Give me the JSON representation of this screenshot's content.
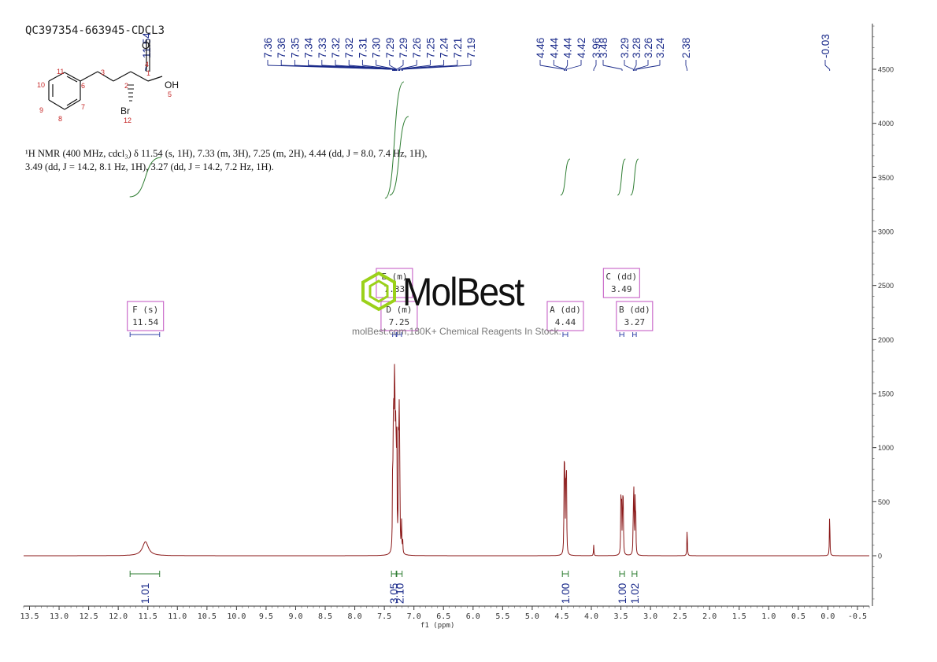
{
  "sample_id": "QC397354-663945-CDCL3",
  "description": {
    "line1": "¹H NMR (400 MHz, cdcl₃) δ 11.54 (s, 1H), 7.33 (m, 3H), 7.25 (m, 2H), 4.44 (dd, J = 8.0, 7.4 Hz, 1H),",
    "line2": "3.49 (dd, J = 14.2, 8.1 Hz, 1H), 3.27 (dd, J = 14.2, 7.2 Hz, 1H)."
  },
  "watermark": {
    "name": "MolBest",
    "tagline": "molBest.com,180K+ Chemical Reagents In Stock."
  },
  "molecule": {
    "atoms": [
      "1",
      "2",
      "3",
      "4",
      "5",
      "6",
      "7",
      "8",
      "9",
      "10",
      "11",
      "12"
    ],
    "labels": {
      "oh": "OH",
      "o": "O",
      "br": "Br"
    }
  },
  "chart_data": {
    "type": "line",
    "xlabel": "f1 (ppm)",
    "ylabel": "",
    "xlim": [
      13.6,
      -0.7
    ],
    "ylim": [
      -500,
      4900
    ],
    "x_ticks": [
      "13.5",
      "13.0",
      "12.5",
      "12.0",
      "11.5",
      "11.0",
      "10.5",
      "10.0",
      "9.5",
      "9.0",
      "8.5",
      "8.0",
      "7.5",
      "7.0",
      "6.5",
      "6.0",
      "5.5",
      "5.0",
      "4.5",
      "4.0",
      "3.5",
      "3.0",
      "2.5",
      "2.0",
      "1.5",
      "1.0",
      "0.5",
      "0.0",
      "-0.5"
    ],
    "y_ticks": [
      0,
      500,
      1000,
      1500,
      2000,
      2500,
      3000,
      3500,
      4000,
      4500
    ],
    "peak_labels": [
      "11.54",
      "7.36",
      "7.36",
      "7.35",
      "7.34",
      "7.33",
      "7.32",
      "7.32",
      "7.31",
      "7.30",
      "7.29",
      "7.29",
      "7.26",
      "7.25",
      "7.24",
      "7.21",
      "7.19",
      "4.46",
      "4.44",
      "4.44",
      "4.42",
      "3.96",
      "3.48",
      "3.29",
      "3.28",
      "3.26",
      "3.24",
      "2.38",
      "-0.03"
    ],
    "peaks": [
      {
        "ppm": 11.54,
        "height": 130,
        "width": 0.06
      },
      {
        "ppm": 7.36,
        "height": 700
      },
      {
        "ppm": 7.35,
        "height": 900
      },
      {
        "ppm": 7.34,
        "height": 1150
      },
      {
        "ppm": 7.33,
        "height": 1310
      },
      {
        "ppm": 7.32,
        "height": 1200
      },
      {
        "ppm": 7.31,
        "height": 900
      },
      {
        "ppm": 7.3,
        "height": 800
      },
      {
        "ppm": 7.29,
        "height": 1000
      },
      {
        "ppm": 7.26,
        "height": 1180
      },
      {
        "ppm": 7.25,
        "height": 1120
      },
      {
        "ppm": 7.24,
        "height": 900
      },
      {
        "ppm": 7.21,
        "height": 300
      },
      {
        "ppm": 7.19,
        "height": 120
      },
      {
        "ppm": 4.46,
        "height": 700
      },
      {
        "ppm": 4.45,
        "height": 860
      },
      {
        "ppm": 4.43,
        "height": 790
      },
      {
        "ppm": 4.42,
        "height": 650
      },
      {
        "ppm": 3.96,
        "height": 100
      },
      {
        "ppm": 3.5,
        "height": 480
      },
      {
        "ppm": 3.49,
        "height": 560
      },
      {
        "ppm": 3.47,
        "height": 540
      },
      {
        "ppm": 3.46,
        "height": 430
      },
      {
        "ppm": 3.29,
        "height": 440
      },
      {
        "ppm": 3.28,
        "height": 550
      },
      {
        "ppm": 3.26,
        "height": 500
      },
      {
        "ppm": 3.25,
        "height": 400
      },
      {
        "ppm": 2.38,
        "height": 280
      },
      {
        "ppm": -0.03,
        "height": 440
      }
    ],
    "integrals": [
      {
        "from": 11.8,
        "to": 11.3,
        "value": "1.01"
      },
      {
        "from": 7.38,
        "to": 7.3,
        "value": "3.05"
      },
      {
        "from": 7.29,
        "to": 7.2,
        "value": "2.10"
      },
      {
        "from": 4.49,
        "to": 4.39,
        "value": "1.00"
      },
      {
        "from": 3.52,
        "to": 3.44,
        "value": "1.00"
      },
      {
        "from": 3.31,
        "to": 3.23,
        "value": "1.02"
      }
    ],
    "multiplets": [
      {
        "label": "F (s)",
        "value": "11.54",
        "ppm": 11.54,
        "from": 11.8,
        "to": 11.3
      },
      {
        "label": "E (m)",
        "value": "7.33",
        "ppm": 7.33,
        "from": 7.36,
        "to": 7.3
      },
      {
        "label": "D (m)",
        "value": "7.25",
        "ppm": 7.25,
        "from": 7.29,
        "to": 7.21
      },
      {
        "label": "A (dd)",
        "value": "4.44",
        "ppm": 4.44,
        "from": 4.48,
        "to": 4.4
      },
      {
        "label": "C (dd)",
        "value": "3.49",
        "ppm": 3.49,
        "from": 3.52,
        "to": 3.45
      },
      {
        "label": "B (dd)",
        "value": "3.27",
        "ppm": 3.27,
        "from": 3.3,
        "to": 3.24
      }
    ]
  }
}
